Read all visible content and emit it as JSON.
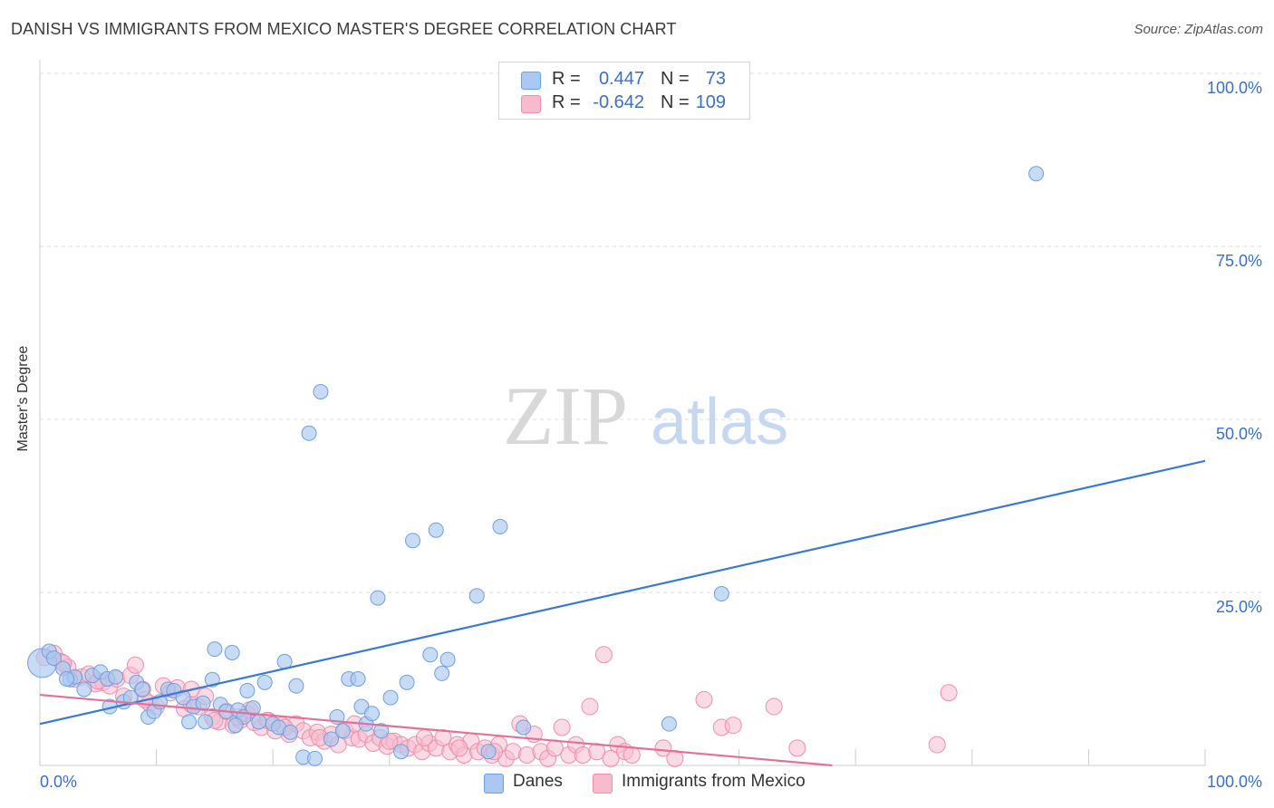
{
  "title": "DANISH VS IMMIGRANTS FROM MEXICO MASTER'S DEGREE CORRELATION CHART",
  "source": "Source: ZipAtlas.com",
  "watermark": {
    "zip": "ZIP",
    "atlas": "atlas"
  },
  "legend_box": {
    "rows": [
      {
        "r_label": "R =",
        "r_value": "0.447",
        "n_label": "N =",
        "n_value": "73"
      },
      {
        "r_label": "R =",
        "r_value": "-0.642",
        "n_label": "N =",
        "n_value": "109"
      }
    ]
  },
  "bottom_legend": [
    {
      "label": "Danes"
    },
    {
      "label": "Immigrants from Mexico"
    }
  ],
  "colors": {
    "blue_fill": "#aac8f0",
    "blue_stroke": "#6f9fdc",
    "blue_line": "#3a78d2",
    "pink_fill": "#f6bccd",
    "pink_stroke": "#ec8fab",
    "pink_line": "#e2719a",
    "tick_label": "#3b6fc6",
    "grid": "#dddddd"
  },
  "chart_data": {
    "type": "scatter",
    "title": "DANISH VS IMMIGRANTS FROM MEXICO MASTER'S DEGREE CORRELATION CHART",
    "xlabel": "",
    "ylabel": "Master's Degree",
    "xlim": [
      0,
      100
    ],
    "ylim": [
      0,
      100
    ],
    "x_tick_labels": [
      "0.0%",
      "100.0%"
    ],
    "y_tick_labels": [
      "25.0%",
      "50.0%",
      "75.0%",
      "100.0%"
    ],
    "y_ticks": [
      25,
      50,
      75,
      100
    ],
    "grid": true,
    "series": [
      {
        "name": "Danes",
        "color": "#aac8f0",
        "trend": {
          "x": [
            0,
            100
          ],
          "y": [
            6.0,
            44.0
          ]
        },
        "points": [
          [
            0.2,
            14.8
          ],
          [
            0.8,
            16.5
          ],
          [
            1.2,
            15.5
          ],
          [
            2.0,
            14.0
          ],
          [
            2.6,
            12.4
          ],
          [
            3.0,
            12.8
          ],
          [
            3.8,
            11.0
          ],
          [
            4.5,
            13.0
          ],
          [
            5.2,
            13.5
          ],
          [
            5.8,
            12.5
          ],
          [
            6.5,
            12.8
          ],
          [
            7.2,
            9.2
          ],
          [
            7.8,
            9.8
          ],
          [
            8.3,
            12.0
          ],
          [
            8.8,
            11.0
          ],
          [
            9.3,
            7.0
          ],
          [
            9.8,
            7.8
          ],
          [
            10.3,
            9.2
          ],
          [
            11.0,
            11.0
          ],
          [
            11.5,
            10.8
          ],
          [
            12.3,
            9.8
          ],
          [
            12.8,
            6.3
          ],
          [
            13.2,
            8.5
          ],
          [
            14.0,
            9.0
          ],
          [
            14.2,
            6.3
          ],
          [
            14.8,
            12.4
          ],
          [
            15.0,
            16.8
          ],
          [
            15.5,
            8.8
          ],
          [
            16.0,
            7.8
          ],
          [
            16.5,
            16.3
          ],
          [
            17.0,
            8.0
          ],
          [
            17.5,
            7.0
          ],
          [
            17.8,
            10.8
          ],
          [
            18.3,
            8.3
          ],
          [
            18.8,
            6.3
          ],
          [
            19.3,
            12.0
          ],
          [
            20.0,
            6.0
          ],
          [
            20.5,
            5.5
          ],
          [
            21.0,
            15.0
          ],
          [
            21.5,
            4.8
          ],
          [
            22.0,
            11.5
          ],
          [
            22.6,
            1.2
          ],
          [
            23.1,
            48.0
          ],
          [
            23.6,
            1.0
          ],
          [
            24.1,
            54.0
          ],
          [
            25.0,
            3.8
          ],
          [
            25.5,
            7.0
          ],
          [
            26.0,
            5.0
          ],
          [
            26.5,
            12.5
          ],
          [
            27.3,
            12.5
          ],
          [
            27.6,
            8.5
          ],
          [
            28.0,
            6.0
          ],
          [
            28.5,
            7.5
          ],
          [
            29.0,
            24.2
          ],
          [
            29.3,
            5.0
          ],
          [
            30.1,
            9.8
          ],
          [
            31.0,
            2.0
          ],
          [
            31.5,
            12.0
          ],
          [
            32.0,
            32.5
          ],
          [
            33.5,
            16.0
          ],
          [
            34.0,
            34.0
          ],
          [
            34.5,
            13.3
          ],
          [
            35.0,
            15.3
          ],
          [
            37.5,
            24.5
          ],
          [
            38.5,
            2.0
          ],
          [
            39.5,
            34.5
          ],
          [
            41.5,
            5.5
          ],
          [
            54.0,
            6.0
          ],
          [
            58.5,
            24.8
          ],
          [
            85.5,
            85.5
          ],
          [
            2.3,
            12.5
          ],
          [
            6.0,
            8.5
          ],
          [
            16.8,
            5.8
          ]
        ]
      },
      {
        "name": "Immigrants from Mexico",
        "color": "#f6bccd",
        "trend": {
          "x": [
            0,
            68
          ],
          "y": [
            10.2,
            0.0
          ]
        },
        "points": [
          [
            0.4,
            15.6
          ],
          [
            1.2,
            16.2
          ],
          [
            1.8,
            15.0
          ],
          [
            2.4,
            14.2
          ],
          [
            3.0,
            12.5
          ],
          [
            3.6,
            12.8
          ],
          [
            4.2,
            13.2
          ],
          [
            4.8,
            11.8
          ],
          [
            5.4,
            12.0
          ],
          [
            6.0,
            11.5
          ],
          [
            6.6,
            12.5
          ],
          [
            7.2,
            10.0
          ],
          [
            7.8,
            13.0
          ],
          [
            8.2,
            14.5
          ],
          [
            8.8,
            11.0
          ],
          [
            9.4,
            9.0
          ],
          [
            10.0,
            8.5
          ],
          [
            10.6,
            11.5
          ],
          [
            11.2,
            10.5
          ],
          [
            11.8,
            11.2
          ],
          [
            12.4,
            8.2
          ],
          [
            13.0,
            8.8
          ],
          [
            13.6,
            8.5
          ],
          [
            14.2,
            10.0
          ],
          [
            14.8,
            7.0
          ],
          [
            15.4,
            6.3
          ],
          [
            16.0,
            7.8
          ],
          [
            16.6,
            5.8
          ],
          [
            17.2,
            6.5
          ],
          [
            17.8,
            7.5
          ],
          [
            18.4,
            6.2
          ],
          [
            19.0,
            5.5
          ],
          [
            19.6,
            6.5
          ],
          [
            20.2,
            5.0
          ],
          [
            20.8,
            5.8
          ],
          [
            21.4,
            4.5
          ],
          [
            22.0,
            6.0
          ],
          [
            22.6,
            5.0
          ],
          [
            23.2,
            4.0
          ],
          [
            23.8,
            4.8
          ],
          [
            24.4,
            3.5
          ],
          [
            25.0,
            4.5
          ],
          [
            25.6,
            3.0
          ],
          [
            26.2,
            5.0
          ],
          [
            26.8,
            4.0
          ],
          [
            27.4,
            3.8
          ],
          [
            28.0,
            4.5
          ],
          [
            28.6,
            3.2
          ],
          [
            29.2,
            4.0
          ],
          [
            29.8,
            2.8
          ],
          [
            30.4,
            3.5
          ],
          [
            31.0,
            3.0
          ],
          [
            31.6,
            2.5
          ],
          [
            32.2,
            3.0
          ],
          [
            32.8,
            2.0
          ],
          [
            33.4,
            3.2
          ],
          [
            34.0,
            2.5
          ],
          [
            34.6,
            4.0
          ],
          [
            35.2,
            2.0
          ],
          [
            35.8,
            3.0
          ],
          [
            36.4,
            1.5
          ],
          [
            37.0,
            3.5
          ],
          [
            37.6,
            2.0
          ],
          [
            38.2,
            2.5
          ],
          [
            38.8,
            1.5
          ],
          [
            39.4,
            3.0
          ],
          [
            40.0,
            1.0
          ],
          [
            40.6,
            2.0
          ],
          [
            41.2,
            6.0
          ],
          [
            41.8,
            1.5
          ],
          [
            42.4,
            4.5
          ],
          [
            43.0,
            2.0
          ],
          [
            43.6,
            1.0
          ],
          [
            44.2,
            2.5
          ],
          [
            44.8,
            5.5
          ],
          [
            45.4,
            1.5
          ],
          [
            46.0,
            3.0
          ],
          [
            46.6,
            1.5
          ],
          [
            47.2,
            8.5
          ],
          [
            47.8,
            2.0
          ],
          [
            48.4,
            16.0
          ],
          [
            49.0,
            1.0
          ],
          [
            49.6,
            3.0
          ],
          [
            50.2,
            2.0
          ],
          [
            50.8,
            1.5
          ],
          [
            53.5,
            2.5
          ],
          [
            54.5,
            1.0
          ],
          [
            57.0,
            9.5
          ],
          [
            58.5,
            5.5
          ],
          [
            59.5,
            5.8
          ],
          [
            63.0,
            8.5
          ],
          [
            65.0,
            2.5
          ],
          [
            77.0,
            3.0
          ],
          [
            78.0,
            10.5
          ],
          [
            2.0,
            14.8
          ],
          [
            5.0,
            12.2
          ],
          [
            9.0,
            9.5
          ],
          [
            13.0,
            11.0
          ],
          [
            15.0,
            6.5
          ],
          [
            17.0,
            7.0
          ],
          [
            18.0,
            8.0
          ],
          [
            19.5,
            6.5
          ],
          [
            21.0,
            5.5
          ],
          [
            24.0,
            4.0
          ],
          [
            27.0,
            6.0
          ],
          [
            30.0,
            3.5
          ],
          [
            33.0,
            4.0
          ],
          [
            36.0,
            2.5
          ],
          [
            39.0,
            2.0
          ]
        ]
      }
    ]
  }
}
